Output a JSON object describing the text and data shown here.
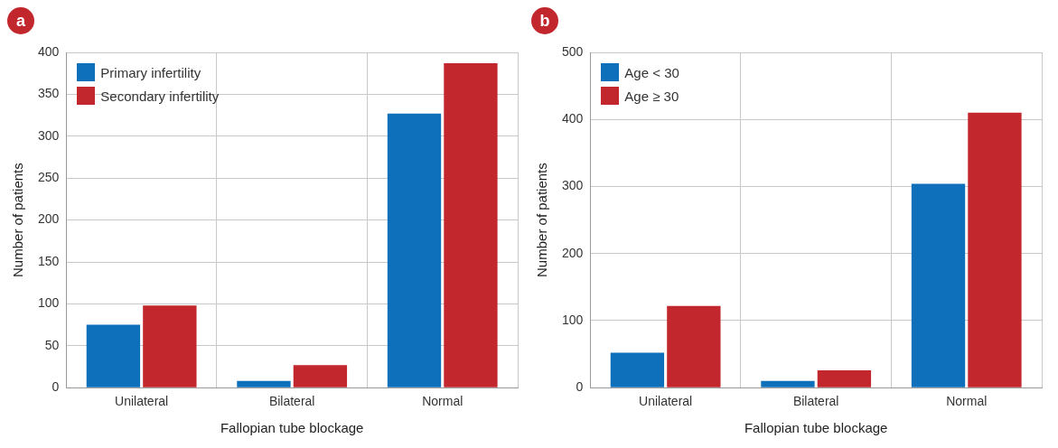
{
  "chart_data": [
    {
      "type": "bar",
      "title": "a",
      "xlabel": "Fallopian tube blockage",
      "ylabel": "Number of patients",
      "categories": [
        "Unilateral",
        "Bilateral",
        "Normal"
      ],
      "series": [
        {
          "name": "Primary infertility",
          "color": "#0e6fbb",
          "values": [
            75,
            8,
            327
          ]
        },
        {
          "name": "Secondary infertility",
          "color": "#c1272d",
          "values": [
            98,
            27,
            387
          ]
        }
      ],
      "ylim": [
        0,
        400
      ],
      "yticks": [
        0,
        50,
        100,
        150,
        200,
        250,
        300,
        350,
        400
      ],
      "grid": true,
      "legend": "top left"
    },
    {
      "type": "bar",
      "title": "b",
      "xlabel": "Fallopian tube blockage",
      "ylabel": "Number of patients",
      "categories": [
        "Unilateral",
        "Bilateral",
        "Normal"
      ],
      "series": [
        {
          "name": "Age < 30",
          "color": "#0e6fbb",
          "values": [
            52,
            10,
            304
          ]
        },
        {
          "name": "Age ≥ 30",
          "color": "#c1272d",
          "values": [
            122,
            26,
            410
          ]
        }
      ],
      "ylim": [
        0,
        500
      ],
      "yticks": [
        0,
        100,
        200,
        300,
        400,
        500
      ],
      "grid": true,
      "legend": "top left"
    }
  ]
}
